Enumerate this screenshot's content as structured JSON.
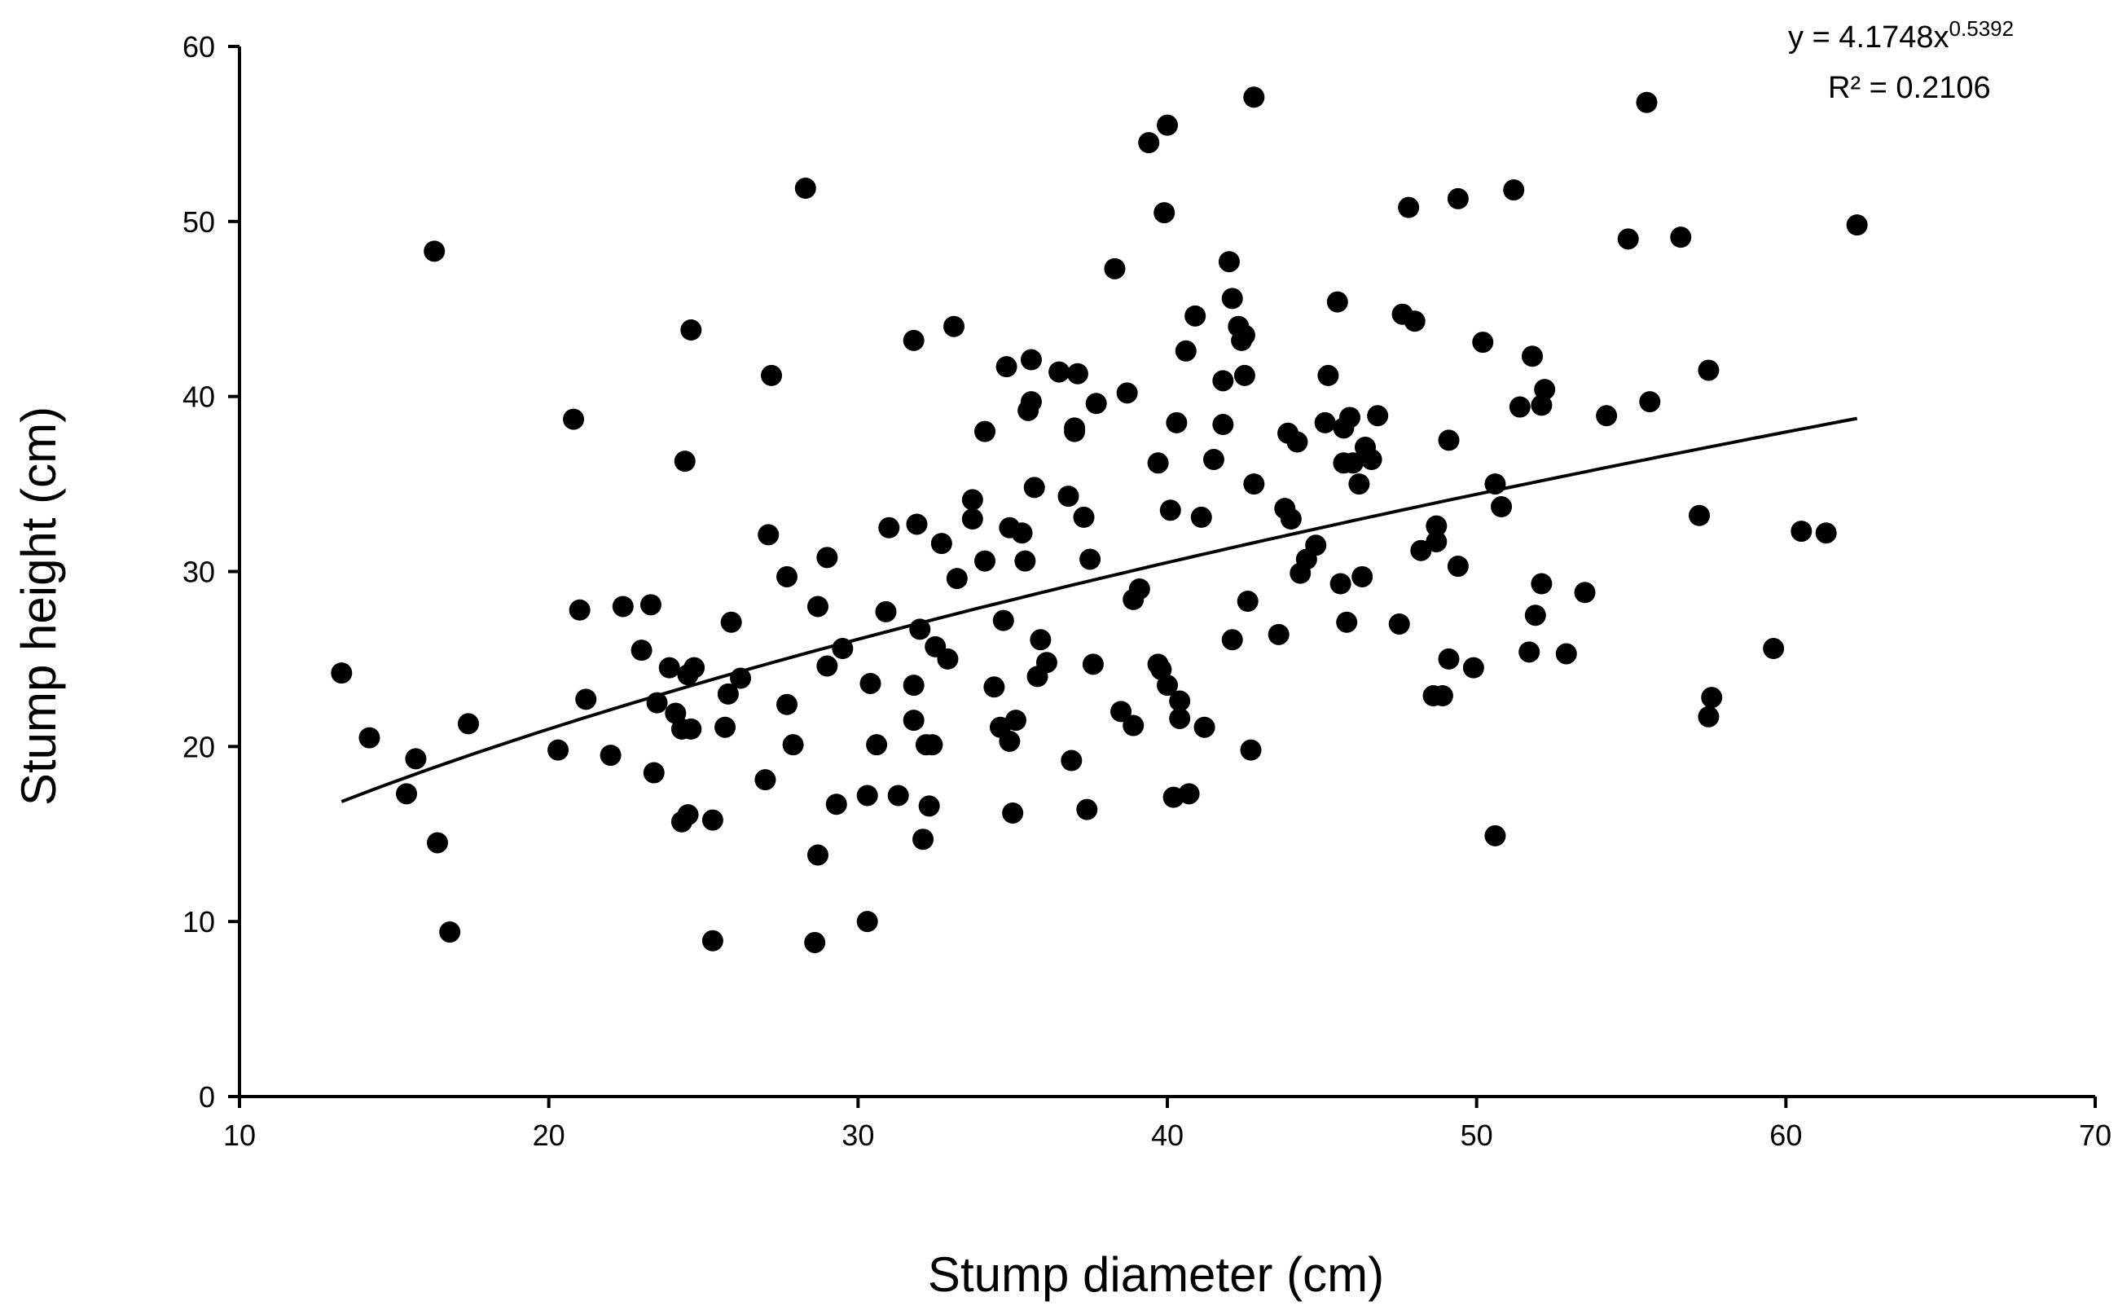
{
  "chart_data": {
    "type": "scatter",
    "xlabel": "Stump diameter (cm)",
    "ylabel": "Stump height (cm)",
    "xlim": [
      10,
      70
    ],
    "ylim": [
      0,
      60
    ],
    "xticks": [
      "10",
      "20",
      "30",
      "40",
      "50",
      "60",
      "70"
    ],
    "yticks": [
      "0",
      "10",
      "20",
      "30",
      "40",
      "50",
      "60"
    ],
    "grid": false,
    "legend": "none",
    "trendline": {
      "type": "power",
      "a": 4.1748,
      "b": 0.5392,
      "x_range": [
        13.3,
        62.3
      ],
      "equation_base": "y = 4.1748x",
      "equation_exp": "0.5392",
      "r2_label": "R² = 0.2106"
    },
    "marker_color": "#000000",
    "points": [
      [
        13.3,
        24.2
      ],
      [
        14.2,
        20.5
      ],
      [
        15.4,
        17.3
      ],
      [
        15.7,
        19.3
      ],
      [
        16.3,
        48.3
      ],
      [
        16.4,
        14.5
      ],
      [
        16.8,
        9.4
      ],
      [
        17.4,
        21.3
      ],
      [
        20.3,
        19.8
      ],
      [
        20.8,
        38.7
      ],
      [
        21.0,
        27.8
      ],
      [
        21.2,
        22.7
      ],
      [
        22.0,
        19.5
      ],
      [
        22.4,
        28.0
      ],
      [
        23.0,
        25.5
      ],
      [
        23.3,
        28.1
      ],
      [
        23.4,
        18.5
      ],
      [
        23.5,
        22.5
      ],
      [
        23.9,
        24.5
      ],
      [
        24.1,
        21.9
      ],
      [
        24.3,
        21.0
      ],
      [
        24.3,
        15.7
      ],
      [
        24.4,
        36.3
      ],
      [
        24.5,
        16.1
      ],
      [
        24.5,
        24.1
      ],
      [
        24.6,
        43.8
      ],
      [
        24.6,
        21.0
      ],
      [
        24.7,
        24.5
      ],
      [
        25.3,
        8.9
      ],
      [
        25.3,
        15.8
      ],
      [
        25.7,
        21.1
      ],
      [
        25.8,
        23.0
      ],
      [
        25.9,
        27.1
      ],
      [
        26.2,
        23.9
      ],
      [
        27.0,
        18.1
      ],
      [
        27.1,
        32.1
      ],
      [
        27.2,
        41.2
      ],
      [
        27.7,
        29.7
      ],
      [
        27.7,
        22.4
      ],
      [
        27.9,
        20.1
      ],
      [
        28.3,
        51.9
      ],
      [
        28.6,
        8.8
      ],
      [
        28.7,
        28.0
      ],
      [
        28.7,
        13.8
      ],
      [
        29.0,
        30.8
      ],
      [
        29.0,
        24.6
      ],
      [
        29.3,
        16.7
      ],
      [
        29.5,
        25.6
      ],
      [
        30.3,
        10.0
      ],
      [
        30.3,
        17.2
      ],
      [
        30.4,
        23.6
      ],
      [
        30.6,
        20.1
      ],
      [
        30.9,
        27.7
      ],
      [
        31.0,
        32.5
      ],
      [
        31.3,
        17.2
      ],
      [
        31.8,
        43.2
      ],
      [
        31.8,
        23.5
      ],
      [
        31.8,
        21.5
      ],
      [
        31.9,
        32.7
      ],
      [
        32.0,
        26.7
      ],
      [
        32.1,
        14.7
      ],
      [
        32.2,
        20.1
      ],
      [
        32.3,
        16.6
      ],
      [
        32.4,
        20.1
      ],
      [
        32.5,
        25.7
      ],
      [
        32.7,
        31.6
      ],
      [
        32.9,
        25.0
      ],
      [
        33.1,
        44.0
      ],
      [
        33.2,
        29.6
      ],
      [
        33.7,
        34.1
      ],
      [
        33.7,
        33.0
      ],
      [
        34.1,
        38.0
      ],
      [
        34.1,
        30.6
      ],
      [
        34.4,
        23.4
      ],
      [
        34.6,
        21.1
      ],
      [
        34.7,
        27.2
      ],
      [
        34.8,
        41.7
      ],
      [
        34.9,
        32.5
      ],
      [
        34.9,
        20.3
      ],
      [
        35.0,
        16.2
      ],
      [
        35.1,
        21.5
      ],
      [
        35.3,
        32.2
      ],
      [
        35.4,
        30.6
      ],
      [
        35.5,
        39.2
      ],
      [
        35.6,
        42.1
      ],
      [
        35.6,
        39.7
      ],
      [
        35.7,
        34.8
      ],
      [
        35.8,
        24.0
      ],
      [
        35.9,
        26.1
      ],
      [
        36.1,
        24.8
      ],
      [
        36.5,
        41.4
      ],
      [
        36.8,
        34.3
      ],
      [
        36.9,
        19.2
      ],
      [
        37.0,
        38.0
      ],
      [
        37.0,
        38.2
      ],
      [
        37.1,
        41.3
      ],
      [
        37.3,
        33.1
      ],
      [
        37.4,
        16.4
      ],
      [
        37.5,
        30.7
      ],
      [
        37.6,
        24.7
      ],
      [
        37.7,
        39.6
      ],
      [
        38.3,
        47.3
      ],
      [
        38.5,
        22.0
      ],
      [
        38.7,
        40.2
      ],
      [
        38.9,
        21.2
      ],
      [
        38.9,
        28.4
      ],
      [
        39.1,
        29.0
      ],
      [
        39.4,
        54.5
      ],
      [
        39.7,
        36.2
      ],
      [
        39.7,
        24.7
      ],
      [
        39.8,
        24.4
      ],
      [
        39.9,
        50.5
      ],
      [
        40.0,
        23.5
      ],
      [
        40.0,
        55.5
      ],
      [
        40.1,
        33.5
      ],
      [
        40.2,
        17.1
      ],
      [
        40.3,
        38.5
      ],
      [
        40.4,
        22.6
      ],
      [
        40.4,
        21.6
      ],
      [
        40.6,
        42.6
      ],
      [
        40.7,
        17.3
      ],
      [
        40.9,
        44.6
      ],
      [
        41.1,
        33.1
      ],
      [
        41.2,
        21.1
      ],
      [
        41.5,
        36.4
      ],
      [
        41.8,
        40.9
      ],
      [
        41.8,
        38.4
      ],
      [
        42.0,
        47.7
      ],
      [
        42.1,
        26.1
      ],
      [
        42.1,
        45.6
      ],
      [
        42.3,
        44.0
      ],
      [
        42.4,
        43.2
      ],
      [
        42.5,
        41.2
      ],
      [
        42.5,
        43.5
      ],
      [
        42.6,
        28.3
      ],
      [
        42.7,
        19.8
      ],
      [
        42.8,
        57.1
      ],
      [
        42.8,
        35.0
      ],
      [
        43.6,
        26.4
      ],
      [
        43.8,
        33.6
      ],
      [
        43.9,
        37.9
      ],
      [
        44.0,
        33.0
      ],
      [
        44.2,
        37.4
      ],
      [
        44.3,
        29.9
      ],
      [
        44.5,
        30.7
      ],
      [
        44.8,
        31.5
      ],
      [
        45.1,
        38.5
      ],
      [
        45.2,
        41.2
      ],
      [
        45.5,
        45.4
      ],
      [
        45.6,
        29.3
      ],
      [
        45.7,
        38.2
      ],
      [
        45.7,
        36.2
      ],
      [
        45.8,
        27.1
      ],
      [
        45.9,
        38.8
      ],
      [
        46.0,
        36.2
      ],
      [
        46.2,
        35.0
      ],
      [
        46.3,
        29.7
      ],
      [
        46.4,
        37.1
      ],
      [
        46.6,
        36.4
      ],
      [
        46.8,
        38.9
      ],
      [
        47.5,
        27.0
      ],
      [
        47.6,
        44.7
      ],
      [
        47.8,
        50.8
      ],
      [
        48.0,
        44.3
      ],
      [
        48.2,
        31.2
      ],
      [
        48.6,
        22.9
      ],
      [
        48.7,
        31.7
      ],
      [
        48.7,
        32.6
      ],
      [
        48.9,
        22.9
      ],
      [
        49.1,
        37.5
      ],
      [
        49.1,
        25.0
      ],
      [
        49.4,
        51.3
      ],
      [
        49.4,
        30.3
      ],
      [
        49.9,
        24.5
      ],
      [
        50.2,
        43.1
      ],
      [
        50.6,
        35.0
      ],
      [
        50.6,
        14.9
      ],
      [
        50.8,
        33.7
      ],
      [
        51.2,
        51.8
      ],
      [
        51.4,
        39.4
      ],
      [
        51.7,
        25.4
      ],
      [
        51.8,
        42.3
      ],
      [
        51.9,
        27.5
      ],
      [
        52.1,
        39.5
      ],
      [
        52.1,
        29.3
      ],
      [
        52.2,
        40.4
      ],
      [
        52.9,
        25.3
      ],
      [
        53.5,
        28.8
      ],
      [
        54.2,
        38.9
      ],
      [
        54.9,
        49.0
      ],
      [
        55.5,
        56.8
      ],
      [
        55.6,
        39.7
      ],
      [
        56.6,
        49.1
      ],
      [
        57.2,
        33.2
      ],
      [
        57.5,
        21.7
      ],
      [
        57.5,
        41.5
      ],
      [
        57.6,
        22.8
      ],
      [
        59.6,
        25.6
      ],
      [
        60.5,
        32.3
      ],
      [
        61.3,
        32.2
      ],
      [
        62.3,
        49.8
      ]
    ]
  }
}
